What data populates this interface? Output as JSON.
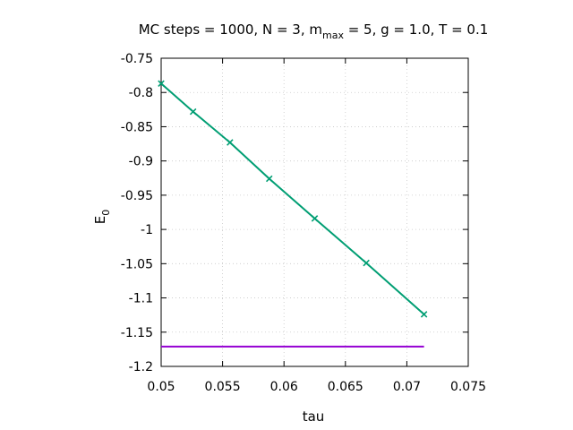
{
  "chart_data": {
    "type": "line",
    "title": {
      "prefix": "MC steps = 1000, N = 3, m",
      "sub": "max",
      "suffix": " = 5, g = 1.0, T = 0.1"
    },
    "xlabel": "tau",
    "ylabel": {
      "main": "E",
      "sub": "0"
    },
    "xlim": [
      0.05,
      0.075
    ],
    "ylim": [
      -1.2,
      -0.75
    ],
    "x_ticks": [
      {
        "value": 0.05,
        "label": "0.05"
      },
      {
        "value": 0.055,
        "label": "0.055"
      },
      {
        "value": 0.06,
        "label": "0.06"
      },
      {
        "value": 0.065,
        "label": "0.065"
      },
      {
        "value": 0.07,
        "label": "0.07"
      },
      {
        "value": 0.075,
        "label": "0.075"
      }
    ],
    "y_ticks": [
      {
        "value": -0.75,
        "label": "-0.75"
      },
      {
        "value": -0.8,
        "label": "-0.8"
      },
      {
        "value": -0.85,
        "label": "-0.85"
      },
      {
        "value": -0.9,
        "label": "-0.9"
      },
      {
        "value": -0.95,
        "label": "-0.95"
      },
      {
        "value": -1.0,
        "label": "-1"
      },
      {
        "value": -1.05,
        "label": "-1.05"
      },
      {
        "value": -1.1,
        "label": "-1.1"
      },
      {
        "value": -1.15,
        "label": "-1.15"
      },
      {
        "value": -1.2,
        "label": "-1.2"
      }
    ],
    "grid": true,
    "series": [
      {
        "kind": "line-markers",
        "marker": "x",
        "color": "#009e73",
        "x": [
          0.05,
          0.0526,
          0.0556,
          0.0588,
          0.0625,
          0.0667,
          0.0714
        ],
        "y": [
          -0.787,
          -0.828,
          -0.873,
          -0.926,
          -0.984,
          -1.049,
          -1.124
        ]
      },
      {
        "kind": "line",
        "color": "#9400d3",
        "x": [
          0.05,
          0.0714
        ],
        "y": [
          -1.171,
          -1.171
        ]
      }
    ]
  }
}
